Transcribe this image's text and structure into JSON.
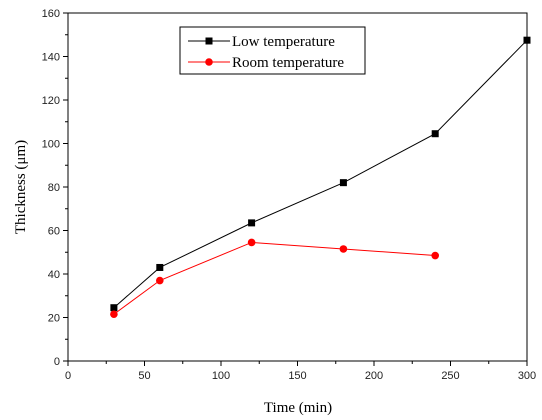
{
  "chart_data": {
    "type": "line",
    "xlabel": "Time (min)",
    "ylabel": "Thickness (μm)",
    "xlim": [
      0,
      300
    ],
    "ylim": [
      0,
      160
    ],
    "xticks": [
      0,
      50,
      100,
      150,
      200,
      250,
      300
    ],
    "yticks": [
      0,
      20,
      40,
      60,
      80,
      100,
      120,
      140,
      160
    ],
    "grid": false,
    "legend_position": "top-center",
    "series": [
      {
        "name": "Low temperature",
        "color": "#000000",
        "marker": "square",
        "x": [
          30,
          60,
          120,
          180,
          240,
          300
        ],
        "y": [
          24.5,
          43,
          63.5,
          82,
          104.5,
          147.5
        ]
      },
      {
        "name": "Room temperature",
        "color": "#ff0000",
        "marker": "circle",
        "x": [
          30,
          60,
          120,
          180,
          240
        ],
        "y": [
          21.5,
          37,
          54.5,
          51.5,
          48.5
        ]
      }
    ]
  }
}
